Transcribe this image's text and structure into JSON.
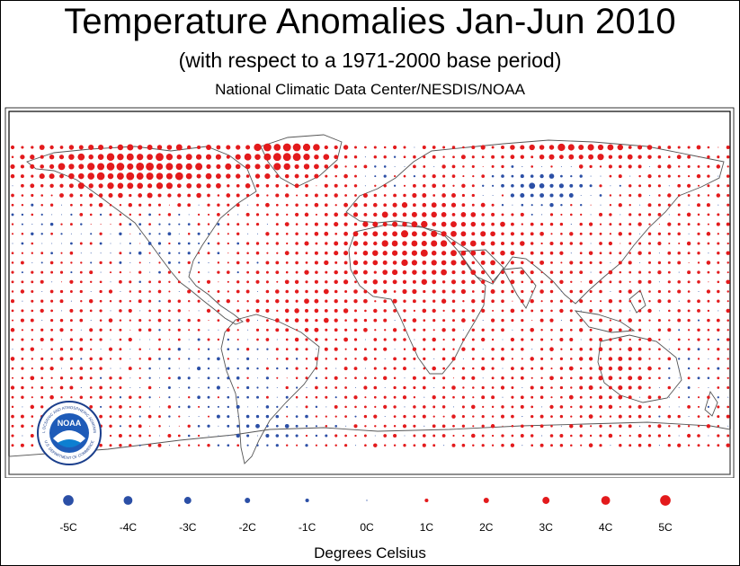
{
  "header": {
    "title": "Temperature Anomalies Jan-Jun 2010",
    "subtitle": "(with respect to a 1971-2000 base period)",
    "source": "National Climatic Data Center/NESDIS/NOAA"
  },
  "logo": {
    "center_text": "NOAA",
    "ring_text_top": "NATIONAL OCEANIC AND ATMOSPHERIC ADMINISTRATION",
    "ring_text_bottom": "U.S. DEPARTMENT OF COMMERCE"
  },
  "legend": {
    "items": [
      {
        "label": "-5C",
        "value": -5
      },
      {
        "label": "-4C",
        "value": -4
      },
      {
        "label": "-3C",
        "value": -3
      },
      {
        "label": "-2C",
        "value": -2
      },
      {
        "label": "-1C",
        "value": -1
      },
      {
        "label": "0C",
        "value": 0
      },
      {
        "label": "1C",
        "value": 1
      },
      {
        "label": "2C",
        "value": 2
      },
      {
        "label": "3C",
        "value": 3
      },
      {
        "label": "4C",
        "value": 4
      },
      {
        "label": "5C",
        "value": 5
      }
    ],
    "units": "Degrees Celsius"
  },
  "colors": {
    "warm": "#e31a1c",
    "cold": "#2b4fa6",
    "neutral": "#4f6fb8",
    "coastline": "#555555"
  }
}
